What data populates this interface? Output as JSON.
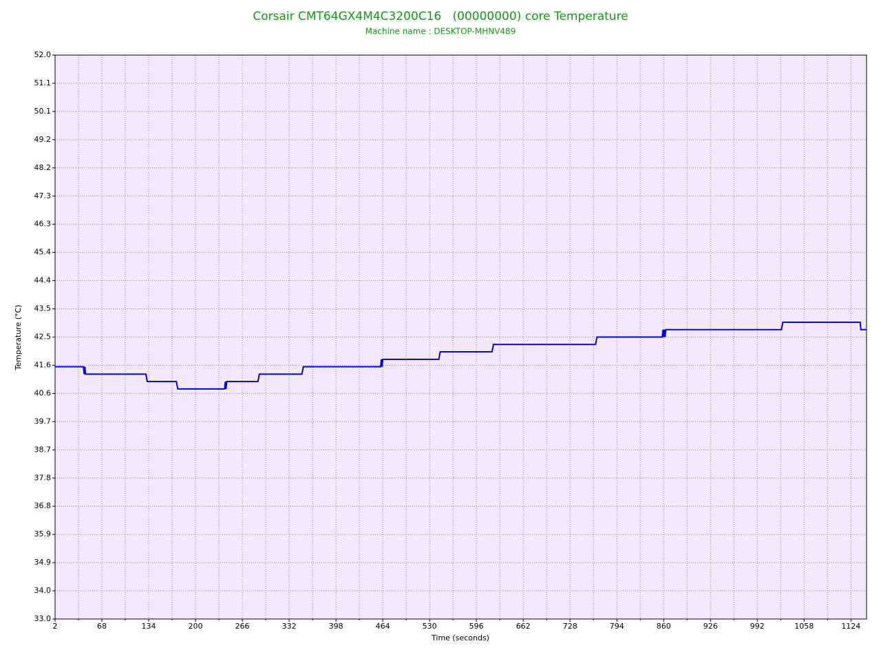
{
  "chart_data": {
    "type": "line",
    "title": "Corsair CMT64GX4M4C3200C16   (00000000) core Temperature",
    "subtitle": "Machine name : DESKTOP-MHNV489",
    "x_label": "Time (seconds)",
    "y_label": "Temperature (°C)",
    "xlim": [
      2,
      1146
    ],
    "ylim": [
      33.0,
      52.0
    ],
    "xticks": [
      2,
      68,
      134,
      200,
      266,
      332,
      398,
      464,
      530,
      596,
      662,
      728,
      794,
      860,
      926,
      992,
      1058,
      1124
    ],
    "xminorticks": [
      35,
      101,
      167,
      233,
      299,
      365,
      431,
      497,
      563,
      629,
      695,
      761,
      827,
      893,
      959,
      1025,
      1091
    ],
    "yticks": [
      {
        "value": 33.0,
        "label": "33.0"
      },
      {
        "value": 33.95,
        "label": "34.0"
      },
      {
        "value": 34.9,
        "label": "34.9"
      },
      {
        "value": 35.85,
        "label": "35.9"
      },
      {
        "value": 36.8,
        "label": "36.8"
      },
      {
        "value": 37.75,
        "label": "37.8"
      },
      {
        "value": 38.7,
        "label": "38.7"
      },
      {
        "value": 39.65,
        "label": "39.7"
      },
      {
        "value": 40.6,
        "label": "40.6"
      },
      {
        "value": 41.55,
        "label": "41.6"
      },
      {
        "value": 42.5,
        "label": "42.5"
      },
      {
        "value": 43.45,
        "label": "43.5"
      },
      {
        "value": 44.4,
        "label": "44.4"
      },
      {
        "value": 45.35,
        "label": "45.4"
      },
      {
        "value": 46.3,
        "label": "46.3"
      },
      {
        "value": 47.25,
        "label": "47.3"
      },
      {
        "value": 48.2,
        "label": "48.2"
      },
      {
        "value": 49.15,
        "label": "49.2"
      },
      {
        "value": 50.1,
        "label": "50.1"
      },
      {
        "value": 51.05,
        "label": "51.1"
      },
      {
        "value": 52.0,
        "label": "52.0"
      }
    ],
    "grid": true,
    "x": [
      2,
      42,
      43,
      44,
      45,
      47,
      130,
      132,
      173,
      175,
      241,
      242,
      243,
      244,
      288,
      290,
      350,
      352,
      461,
      462,
      463,
      464,
      543,
      545,
      618,
      620,
      764,
      766,
      858,
      859,
      860,
      861,
      862,
      863,
      1026,
      1028,
      1137,
      1138,
      1146
    ],
    "series": [
      {
        "color": "#0000e0",
        "values": [
          41.5,
          41.5,
          41.25,
          41.5,
          41.25,
          41.25,
          41.25,
          41.0,
          41.0,
          40.75,
          40.75,
          41.0,
          40.75,
          41.0,
          41.0,
          41.25,
          41.25,
          41.5,
          41.5,
          41.75,
          41.5,
          41.75,
          41.75,
          42.0,
          42.0,
          42.25,
          42.25,
          42.5,
          42.5,
          42.75,
          42.5,
          42.75,
          42.5,
          42.75,
          42.75,
          43.0,
          43.0,
          42.75,
          42.75
        ]
      }
    ]
  }
}
